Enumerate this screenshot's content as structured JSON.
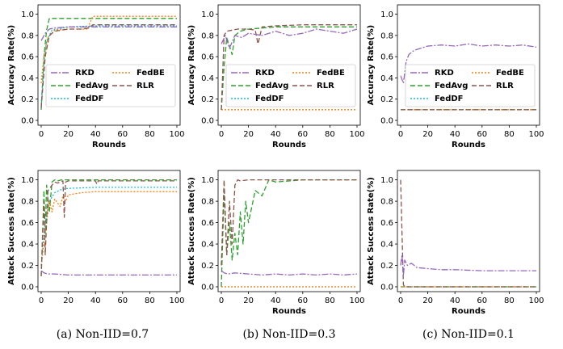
{
  "legend_entries": [
    {
      "name": "RKD",
      "color": "#9467bd",
      "dash": "8,2,2,2"
    },
    {
      "name": "FedAvg",
      "color": "#2ca02c",
      "dash": "6,3"
    },
    {
      "name": "FedDF",
      "color": "#17becf",
      "dash": "2,2"
    },
    {
      "name": "FedBE",
      "color": "#ff7f0e",
      "dash": "2,2"
    },
    {
      "name": "RLR",
      "color": "#8c564b",
      "dash": "6,3"
    }
  ],
  "captions": [
    "(a) Non-IID=0.7",
    "(b) Non-IID=0.3",
    "(c) Non-IID=0.1"
  ],
  "chart_data": [
    {
      "type": "line",
      "panel": "a-top",
      "xlabel": "Rounds",
      "ylabel": "Accuracy Rate(%)",
      "xlim": [
        0,
        100
      ],
      "ylim": [
        0,
        1.05
      ],
      "xticks": [
        "0",
        "20",
        "40",
        "60",
        "80",
        "100"
      ],
      "yticks": [
        "0.0",
        "0.2",
        "0.4",
        "0.6",
        "0.8",
        "1.0"
      ],
      "legend": "center",
      "grid": false,
      "series": [
        {
          "name": "RKD",
          "x": [
            0,
            3,
            6,
            10,
            20,
            30,
            40,
            60,
            80,
            100
          ],
          "values": [
            0.75,
            0.82,
            0.86,
            0.87,
            0.88,
            0.88,
            0.88,
            0.88,
            0.88,
            0.88
          ]
        },
        {
          "name": "FedAvg",
          "x": [
            0,
            2,
            4,
            6,
            8,
            20,
            40,
            60,
            80,
            100
          ],
          "values": [
            0.1,
            0.6,
            0.85,
            0.96,
            0.96,
            0.96,
            0.96,
            0.96,
            0.96,
            0.96
          ]
        },
        {
          "name": "FedDF",
          "x": [
            0,
            2,
            4,
            8,
            20,
            40,
            60,
            80,
            100
          ],
          "values": [
            0.15,
            0.55,
            0.75,
            0.85,
            0.88,
            0.89,
            0.89,
            0.89,
            0.89
          ]
        },
        {
          "name": "FedBE",
          "x": [
            0,
            2,
            5,
            10,
            20,
            34,
            38,
            60,
            80,
            100
          ],
          "values": [
            0.35,
            0.6,
            0.78,
            0.85,
            0.86,
            0.86,
            0.98,
            0.98,
            0.98,
            0.98
          ]
        },
        {
          "name": "RLR",
          "x": [
            0,
            3,
            6,
            10,
            20,
            30,
            35,
            38,
            60,
            80,
            100
          ],
          "values": [
            0.12,
            0.6,
            0.8,
            0.84,
            0.86,
            0.86,
            0.87,
            0.9,
            0.9,
            0.9,
            0.9
          ]
        }
      ]
    },
    {
      "type": "line",
      "panel": "b-top",
      "xlabel": "Rounds",
      "ylabel": "Accuracy Rate(%)",
      "xlim": [
        0,
        100
      ],
      "ylim": [
        0,
        1.05
      ],
      "xticks": [
        "0",
        "20",
        "40",
        "60",
        "80",
        "100"
      ],
      "yticks": [
        "0.0",
        "0.2",
        "0.4",
        "0.6",
        "0.8",
        "1.0"
      ],
      "legend": "center",
      "grid": false,
      "series": [
        {
          "name": "RKD",
          "x": [
            0,
            3,
            6,
            10,
            15,
            20,
            30,
            40,
            50,
            60,
            70,
            80,
            90,
            100
          ],
          "values": [
            0.72,
            0.8,
            0.68,
            0.8,
            0.78,
            0.82,
            0.8,
            0.84,
            0.8,
            0.82,
            0.86,
            0.84,
            0.82,
            0.86
          ]
        },
        {
          "name": "FedAvg",
          "x": [
            0,
            2,
            4,
            6,
            8,
            10,
            14,
            20,
            30,
            40,
            60,
            80,
            100
          ],
          "values": [
            0.1,
            0.5,
            0.78,
            0.7,
            0.62,
            0.8,
            0.84,
            0.86,
            0.87,
            0.88,
            0.88,
            0.88,
            0.88
          ]
        },
        {
          "name": "FedDF",
          "x": [
            0,
            100
          ],
          "values": [
            0.1,
            0.1
          ]
        },
        {
          "name": "FedBE",
          "x": [
            0,
            100
          ],
          "values": [
            0.1,
            0.1
          ]
        },
        {
          "name": "RLR",
          "x": [
            0,
            2,
            4,
            8,
            12,
            20,
            25,
            27,
            30,
            40,
            60,
            80,
            100
          ],
          "values": [
            0.1,
            0.8,
            0.84,
            0.85,
            0.86,
            0.86,
            0.85,
            0.72,
            0.88,
            0.89,
            0.9,
            0.9,
            0.9
          ]
        }
      ]
    },
    {
      "type": "line",
      "panel": "c-top",
      "xlabel": "Rounds",
      "ylabel": "Accuracy Rate(%)",
      "xlim": [
        0,
        100
      ],
      "ylim": [
        0,
        1.05
      ],
      "xticks": [
        "0",
        "20",
        "40",
        "60",
        "80",
        "100"
      ],
      "yticks": [
        "0.0",
        "0.2",
        "0.4",
        "0.6",
        "0.8",
        "1.0"
      ],
      "legend": "center",
      "grid": false,
      "series": [
        {
          "name": "RKD",
          "x": [
            0,
            2,
            4,
            6,
            10,
            15,
            20,
            30,
            40,
            50,
            60,
            70,
            80,
            90,
            100
          ],
          "values": [
            0.42,
            0.35,
            0.55,
            0.62,
            0.66,
            0.68,
            0.7,
            0.71,
            0.7,
            0.72,
            0.7,
            0.71,
            0.7,
            0.71,
            0.69
          ]
        },
        {
          "name": "FedAvg",
          "x": [
            0,
            100
          ],
          "values": [
            0.1,
            0.1
          ]
        },
        {
          "name": "FedDF",
          "x": [
            0,
            100
          ],
          "values": [
            0.1,
            0.1
          ]
        },
        {
          "name": "FedBE",
          "x": [
            0,
            100
          ],
          "values": [
            0.1,
            0.1
          ]
        },
        {
          "name": "RLR",
          "x": [
            0,
            100
          ],
          "values": [
            0.1,
            0.1
          ]
        }
      ]
    },
    {
      "type": "line",
      "panel": "a-bottom",
      "xlabel": "",
      "ylabel": "Attack Success Rate(%)",
      "xlim": [
        0,
        100
      ],
      "ylim": [
        0,
        1.05
      ],
      "xticks": [
        "0",
        "20",
        "40",
        "60",
        "80",
        "100"
      ],
      "yticks": [
        "0.0",
        "0.2",
        "0.4",
        "0.6",
        "0.8",
        "1.0"
      ],
      "legend": "none",
      "grid": false,
      "series": [
        {
          "name": "RKD",
          "x": [
            0,
            2,
            5,
            10,
            20,
            40,
            60,
            80,
            100
          ],
          "values": [
            0.15,
            0.13,
            0.12,
            0.12,
            0.11,
            0.11,
            0.11,
            0.11,
            0.11
          ]
        },
        {
          "name": "FedAvg",
          "x": [
            0,
            2,
            3,
            4,
            6,
            8,
            10,
            12,
            15,
            20,
            40,
            60,
            80,
            100
          ],
          "values": [
            0.1,
            0.9,
            0.5,
            0.95,
            0.7,
            0.98,
            1.0,
            0.99,
            1.0,
            1.0,
            1.0,
            1.0,
            1.0,
            1.0
          ]
        },
        {
          "name": "FedDF",
          "x": [
            0,
            3,
            6,
            10,
            15,
            20,
            40,
            60,
            80,
            100
          ],
          "values": [
            0.2,
            0.6,
            0.8,
            0.88,
            0.91,
            0.92,
            0.93,
            0.93,
            0.93,
            0.93
          ]
        },
        {
          "name": "FedBE",
          "x": [
            0,
            3,
            6,
            8,
            10,
            14,
            16,
            18,
            20,
            30,
            40,
            60,
            80,
            100
          ],
          "values": [
            0.2,
            0.5,
            0.8,
            0.7,
            0.82,
            0.75,
            0.85,
            0.8,
            0.86,
            0.88,
            0.89,
            0.89,
            0.89,
            0.89
          ]
        },
        {
          "name": "RLR",
          "x": [
            0,
            2,
            3,
            5,
            8,
            10,
            12,
            14,
            16,
            17,
            18,
            20,
            40,
            41,
            42,
            60,
            80,
            100
          ],
          "values": [
            0.1,
            0.8,
            0.3,
            0.9,
            0.95,
            0.98,
            0.97,
            0.98,
            0.99,
            0.65,
            0.98,
            0.99,
            0.99,
            0.96,
            0.99,
            0.99,
            0.99,
            0.99
          ]
        }
      ]
    },
    {
      "type": "line",
      "panel": "b-bottom",
      "xlabel": "Rounds",
      "ylabel": "Attack Success Rate(%)",
      "xlim": [
        0,
        100
      ],
      "ylim": [
        0,
        1.05
      ],
      "xticks": [
        "0",
        "20",
        "40",
        "60",
        "80",
        "100"
      ],
      "yticks": [
        "0.0",
        "0.2",
        "0.4",
        "0.6",
        "0.8",
        "1.0"
      ],
      "legend": "none",
      "grid": false,
      "series": [
        {
          "name": "RKD",
          "x": [
            0,
            2,
            5,
            10,
            20,
            30,
            40,
            50,
            60,
            70,
            80,
            90,
            100
          ],
          "values": [
            0.15,
            0.13,
            0.12,
            0.13,
            0.12,
            0.11,
            0.12,
            0.11,
            0.12,
            0.11,
            0.12,
            0.11,
            0.12
          ]
        },
        {
          "name": "FedAvg",
          "x": [
            0,
            2,
            4,
            6,
            8,
            10,
            12,
            14,
            16,
            18,
            20,
            25,
            30,
            35,
            40,
            60,
            80,
            100
          ],
          "values": [
            0.0,
            0.9,
            0.3,
            0.6,
            0.25,
            0.5,
            0.3,
            0.7,
            0.4,
            0.8,
            0.6,
            0.9,
            0.85,
            1.0,
            0.98,
            1.0,
            1.0,
            1.0
          ]
        },
        {
          "name": "FedDF",
          "x": [
            0,
            100
          ],
          "values": [
            0.0,
            0.0
          ]
        },
        {
          "name": "FedBE",
          "x": [
            0,
            100
          ],
          "values": [
            0.0,
            0.0
          ]
        },
        {
          "name": "RLR",
          "x": [
            0,
            2,
            4,
            6,
            8,
            10,
            12,
            14,
            20,
            30,
            40,
            60,
            80,
            100
          ],
          "values": [
            0.2,
            1.0,
            0.3,
            0.8,
            0.4,
            0.95,
            1.0,
            0.99,
            1.0,
            1.0,
            1.0,
            1.0,
            1.0,
            1.0
          ]
        }
      ]
    },
    {
      "type": "line",
      "panel": "c-bottom",
      "xlabel": "Rounds",
      "ylabel": "Attack Success Rate(%)",
      "xlim": [
        0,
        100
      ],
      "ylim": [
        0,
        1.05
      ],
      "xticks": [
        "0",
        "20",
        "40",
        "60",
        "80",
        "100"
      ],
      "yticks": [
        "0.0",
        "0.2",
        "0.4",
        "0.6",
        "0.8",
        "1.0"
      ],
      "legend": "none",
      "grid": false,
      "series": [
        {
          "name": "RKD",
          "x": [
            0,
            1,
            2,
            3,
            5,
            8,
            12,
            20,
            30,
            40,
            60,
            80,
            100
          ],
          "values": [
            0.2,
            0.3,
            0.1,
            0.25,
            0.2,
            0.22,
            0.18,
            0.17,
            0.16,
            0.16,
            0.15,
            0.15,
            0.15
          ]
        },
        {
          "name": "FedAvg",
          "x": [
            0,
            100
          ],
          "values": [
            0.0,
            0.0
          ]
        },
        {
          "name": "FedDF",
          "x": [
            0,
            100
          ],
          "values": [
            0.0,
            0.0
          ]
        },
        {
          "name": "FedBE",
          "x": [
            0,
            100
          ],
          "values": [
            0.0,
            0.0
          ]
        },
        {
          "name": "RLR",
          "x": [
            0,
            1,
            2,
            3,
            100
          ],
          "values": [
            1.0,
            0.5,
            0.02,
            0.0,
            0.0
          ]
        }
      ]
    }
  ]
}
